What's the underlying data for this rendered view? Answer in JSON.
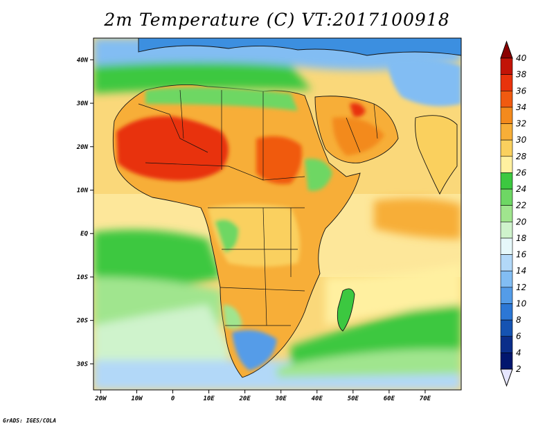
{
  "title": "2m Temperature (C) VT:2017100918",
  "credit": "GrADS: IGES/COLA",
  "lat_labels": [
    "40N",
    "30N",
    "20N",
    "10N",
    "EQ",
    "10S",
    "20S",
    "30S"
  ],
  "lat_values": [
    40,
    30,
    20,
    10,
    0,
    -10,
    -20,
    -30
  ],
  "lon_labels": [
    "20W",
    "10W",
    "0",
    "10E",
    "20E",
    "30E",
    "40E",
    "50E",
    "60E",
    "70E"
  ],
  "lon_values": [
    -20,
    -10,
    0,
    10,
    20,
    30,
    40,
    50,
    60,
    70
  ],
  "colorbar": {
    "levels": [
      "40",
      "38",
      "36",
      "34",
      "32",
      "30",
      "28",
      "26",
      "24",
      "22",
      "20",
      "18",
      "16",
      "14",
      "12",
      "10",
      "8",
      "6",
      "4",
      "2"
    ],
    "colors": [
      "#8a0000",
      "#c21407",
      "#e8330c",
      "#f05a10",
      "#f38a1d",
      "#f7ae38",
      "#fad05e",
      "#fff0a0",
      "#3cc840",
      "#6ed764",
      "#a0e58e",
      "#cff3cc",
      "#e6f8fa",
      "#b2d8f8",
      "#82bdf3",
      "#549ce8",
      "#2c77d5",
      "#1553b2",
      "#0b2e8a",
      "#02166e"
    ],
    "top_arrow_color": "#8a0000",
    "bottom_arrow_color": "#e6e6ff"
  },
  "map": {
    "region": "Africa, Arabian Peninsula and western Indian Ocean",
    "lon_range": [
      -22,
      80
    ],
    "lat_range": [
      -36,
      45
    ],
    "ocean_color_north": "#fad87a",
    "hot_core_color": "#d9350f"
  }
}
